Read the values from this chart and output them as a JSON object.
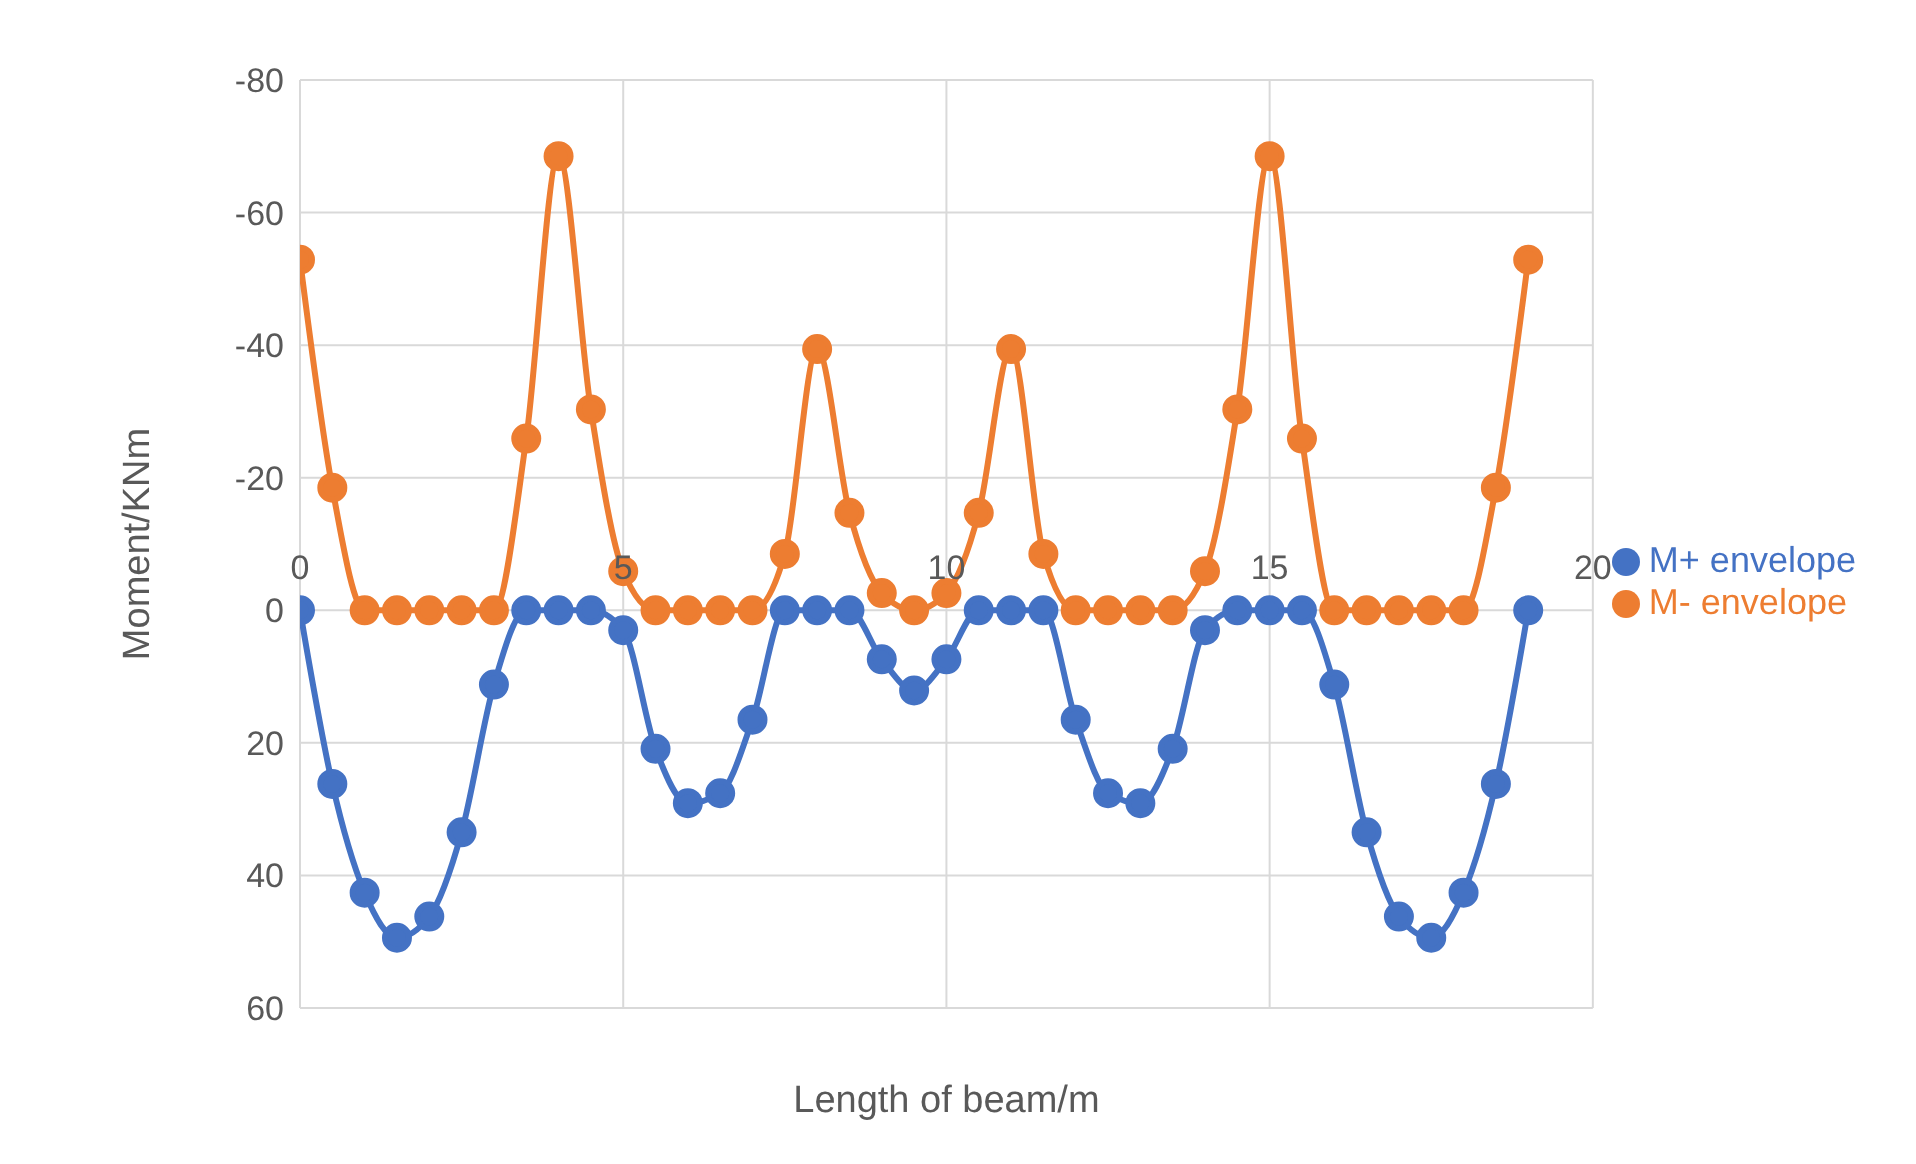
{
  "chart_data": {
    "type": "line",
    "xlabel": "Length of beam/m",
    "ylabel": "Moment/KNm",
    "x": [
      0,
      0.5,
      1,
      1.5,
      2,
      2.5,
      3,
      3.5,
      4,
      4.5,
      5,
      5.5,
      6,
      6.5,
      7,
      7.5,
      8,
      8.5,
      9,
      9.5,
      10,
      10.5,
      11,
      11.5,
      12,
      12.5,
      13,
      13.5,
      14,
      14.5,
      15,
      15.5,
      16,
      16.5,
      17,
      17.5,
      18,
      18.5,
      19
    ],
    "series": [
      {
        "name": "M+ envelope",
        "color": "#4472c4",
        "values": [
          0,
          26.2,
          42.6,
          49.4,
          46.2,
          33.5,
          11.2,
          0,
          0,
          0,
          3,
          20.9,
          29.1,
          27.6,
          16.5,
          0,
          0,
          0,
          7.4,
          12.1,
          7.4,
          0,
          0,
          0,
          16.5,
          27.6,
          29.1,
          20.9,
          3,
          0,
          0,
          0,
          11.2,
          33.5,
          46.2,
          49.4,
          42.6,
          26.2,
          0
        ]
      },
      {
        "name": "M- envelope",
        "color": "#ed7d31",
        "values": [
          -52.9,
          -18.5,
          0,
          0,
          0,
          0,
          0,
          -25.9,
          -68.5,
          -30.3,
          -5.9,
          0,
          0,
          0,
          0,
          -8.5,
          -39.4,
          -14.7,
          -2.6,
          0,
          -2.6,
          -14.7,
          -39.4,
          -8.5,
          0,
          0,
          0,
          0,
          -5.9,
          -30.3,
          -68.5,
          -25.9,
          0,
          0,
          0,
          0,
          0,
          -18.5,
          -52.9
        ]
      }
    ],
    "xlim": [
      0,
      20
    ],
    "xticks": [
      0,
      5,
      10,
      15,
      20
    ],
    "ylim": [
      60,
      -80
    ],
    "yticks": [
      -80,
      -60,
      -40,
      -20,
      0,
      20,
      40,
      60
    ],
    "grid": true,
    "legend": "right",
    "marker": "circle",
    "line_style": "solid"
  }
}
